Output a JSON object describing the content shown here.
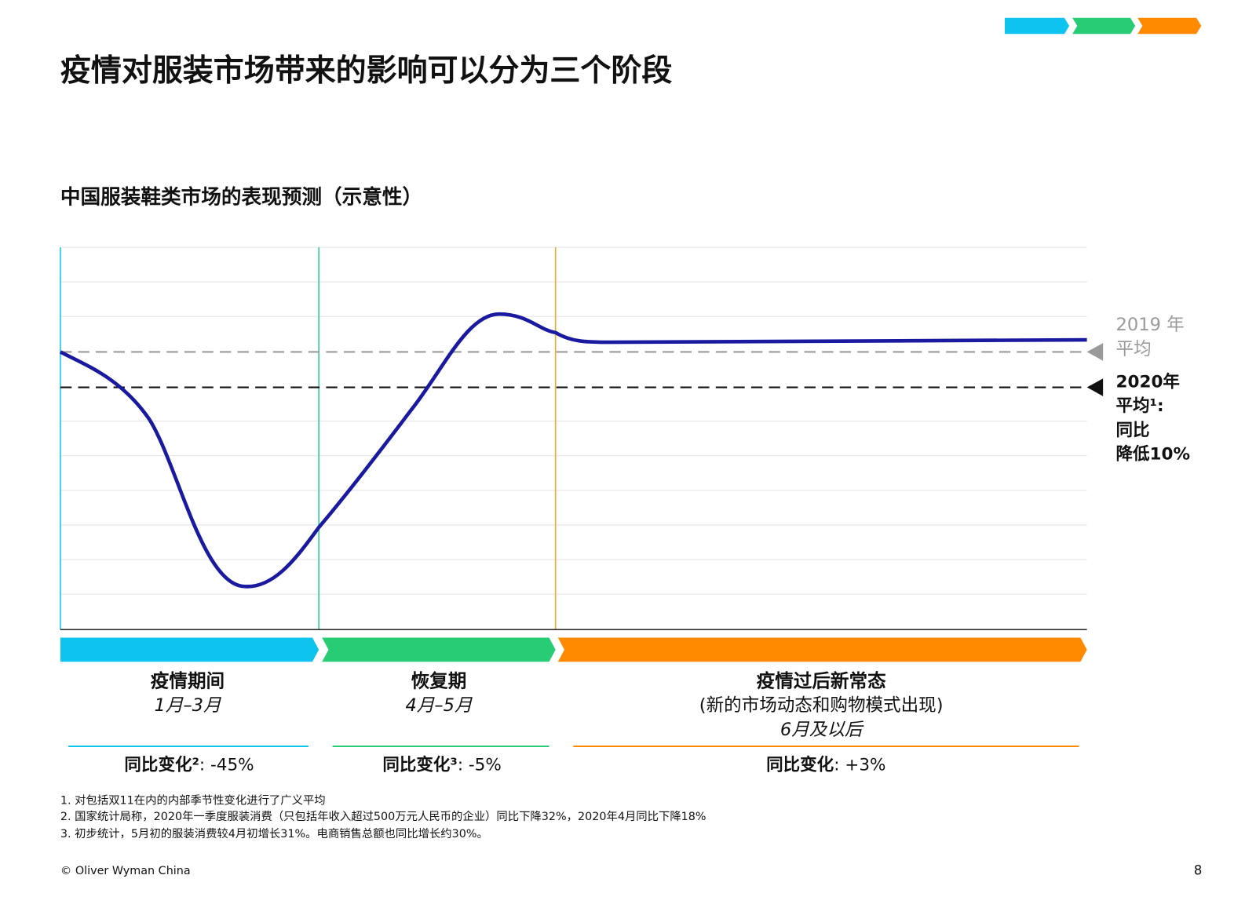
{
  "header": {
    "title": "疫情对服装市场带来的影响可以分为三个阶段"
  },
  "chart": {
    "title": "中国服装鞋类市场的表现预测（示意性）",
    "reference_2019": [
      "2019 年",
      "平均"
    ],
    "reference_2020": [
      "2020年",
      "平均¹:",
      "同比",
      "降低10%"
    ]
  },
  "phases": [
    {
      "name": "疫情期间",
      "period": "1月–3月",
      "change_label": "同比变化²",
      "change_value": ": -45%"
    },
    {
      "name": "恢复期",
      "period": "4月–5月",
      "change_label": "同比变化³",
      "change_value": ": -5%"
    },
    {
      "name": "疫情过后新常态",
      "note": "(新的市场动态和购物模式出现)",
      "period": "6月及以后",
      "change_label": "同比变化",
      "change_value": ": +3%"
    }
  ],
  "footnotes": [
    "1. 对包括双11在内的内部季节性变化进行了广义平均",
    "2. 国家统计局称，2020年一季度服装消费（只包括年收入超过500万元人民币的企业）同比下降32%，2020年4月同比下降18%",
    "3. 初步统计，5月初的服装消费较4月初增长31%。电商销售总额也同比增长约30%。"
  ],
  "footer": {
    "copyright": "© Oliver Wyman China",
    "page": "8"
  }
}
